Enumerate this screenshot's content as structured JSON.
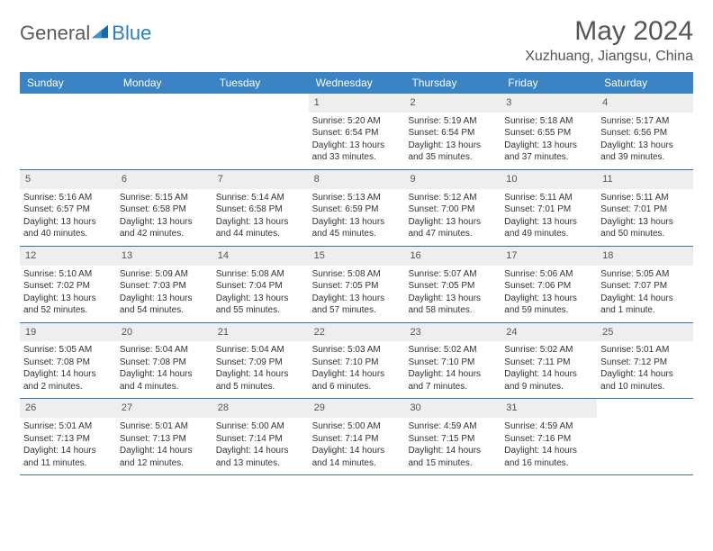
{
  "brand": {
    "part1": "General",
    "part2": "Blue"
  },
  "title": "May 2024",
  "location": "Xuzhuang, Jiangsu, China",
  "colors": {
    "header_bg": "#3a84c5",
    "header_text": "#ffffff",
    "daynum_bg": "#eeeeee",
    "cell_text": "#333333",
    "rule": "#3a6fa5",
    "brand_gray": "#5a5a5a",
    "brand_blue": "#2a7ec4"
  },
  "day_names": [
    "Sunday",
    "Monday",
    "Tuesday",
    "Wednesday",
    "Thursday",
    "Friday",
    "Saturday"
  ],
  "weeks": [
    [
      {
        "blank": true
      },
      {
        "blank": true
      },
      {
        "blank": true
      },
      {
        "n": "1",
        "sr": "Sunrise: 5:20 AM",
        "ss": "Sunset: 6:54 PM",
        "d1": "Daylight: 13 hours",
        "d2": "and 33 minutes."
      },
      {
        "n": "2",
        "sr": "Sunrise: 5:19 AM",
        "ss": "Sunset: 6:54 PM",
        "d1": "Daylight: 13 hours",
        "d2": "and 35 minutes."
      },
      {
        "n": "3",
        "sr": "Sunrise: 5:18 AM",
        "ss": "Sunset: 6:55 PM",
        "d1": "Daylight: 13 hours",
        "d2": "and 37 minutes."
      },
      {
        "n": "4",
        "sr": "Sunrise: 5:17 AM",
        "ss": "Sunset: 6:56 PM",
        "d1": "Daylight: 13 hours",
        "d2": "and 39 minutes."
      }
    ],
    [
      {
        "n": "5",
        "sr": "Sunrise: 5:16 AM",
        "ss": "Sunset: 6:57 PM",
        "d1": "Daylight: 13 hours",
        "d2": "and 40 minutes."
      },
      {
        "n": "6",
        "sr": "Sunrise: 5:15 AM",
        "ss": "Sunset: 6:58 PM",
        "d1": "Daylight: 13 hours",
        "d2": "and 42 minutes."
      },
      {
        "n": "7",
        "sr": "Sunrise: 5:14 AM",
        "ss": "Sunset: 6:58 PM",
        "d1": "Daylight: 13 hours",
        "d2": "and 44 minutes."
      },
      {
        "n": "8",
        "sr": "Sunrise: 5:13 AM",
        "ss": "Sunset: 6:59 PM",
        "d1": "Daylight: 13 hours",
        "d2": "and 45 minutes."
      },
      {
        "n": "9",
        "sr": "Sunrise: 5:12 AM",
        "ss": "Sunset: 7:00 PM",
        "d1": "Daylight: 13 hours",
        "d2": "and 47 minutes."
      },
      {
        "n": "10",
        "sr": "Sunrise: 5:11 AM",
        "ss": "Sunset: 7:01 PM",
        "d1": "Daylight: 13 hours",
        "d2": "and 49 minutes."
      },
      {
        "n": "11",
        "sr": "Sunrise: 5:11 AM",
        "ss": "Sunset: 7:01 PM",
        "d1": "Daylight: 13 hours",
        "d2": "and 50 minutes."
      }
    ],
    [
      {
        "n": "12",
        "sr": "Sunrise: 5:10 AM",
        "ss": "Sunset: 7:02 PM",
        "d1": "Daylight: 13 hours",
        "d2": "and 52 minutes."
      },
      {
        "n": "13",
        "sr": "Sunrise: 5:09 AM",
        "ss": "Sunset: 7:03 PM",
        "d1": "Daylight: 13 hours",
        "d2": "and 54 minutes."
      },
      {
        "n": "14",
        "sr": "Sunrise: 5:08 AM",
        "ss": "Sunset: 7:04 PM",
        "d1": "Daylight: 13 hours",
        "d2": "and 55 minutes."
      },
      {
        "n": "15",
        "sr": "Sunrise: 5:08 AM",
        "ss": "Sunset: 7:05 PM",
        "d1": "Daylight: 13 hours",
        "d2": "and 57 minutes."
      },
      {
        "n": "16",
        "sr": "Sunrise: 5:07 AM",
        "ss": "Sunset: 7:05 PM",
        "d1": "Daylight: 13 hours",
        "d2": "and 58 minutes."
      },
      {
        "n": "17",
        "sr": "Sunrise: 5:06 AM",
        "ss": "Sunset: 7:06 PM",
        "d1": "Daylight: 13 hours",
        "d2": "and 59 minutes."
      },
      {
        "n": "18",
        "sr": "Sunrise: 5:05 AM",
        "ss": "Sunset: 7:07 PM",
        "d1": "Daylight: 14 hours",
        "d2": "and 1 minute."
      }
    ],
    [
      {
        "n": "19",
        "sr": "Sunrise: 5:05 AM",
        "ss": "Sunset: 7:08 PM",
        "d1": "Daylight: 14 hours",
        "d2": "and 2 minutes."
      },
      {
        "n": "20",
        "sr": "Sunrise: 5:04 AM",
        "ss": "Sunset: 7:08 PM",
        "d1": "Daylight: 14 hours",
        "d2": "and 4 minutes."
      },
      {
        "n": "21",
        "sr": "Sunrise: 5:04 AM",
        "ss": "Sunset: 7:09 PM",
        "d1": "Daylight: 14 hours",
        "d2": "and 5 minutes."
      },
      {
        "n": "22",
        "sr": "Sunrise: 5:03 AM",
        "ss": "Sunset: 7:10 PM",
        "d1": "Daylight: 14 hours",
        "d2": "and 6 minutes."
      },
      {
        "n": "23",
        "sr": "Sunrise: 5:02 AM",
        "ss": "Sunset: 7:10 PM",
        "d1": "Daylight: 14 hours",
        "d2": "and 7 minutes."
      },
      {
        "n": "24",
        "sr": "Sunrise: 5:02 AM",
        "ss": "Sunset: 7:11 PM",
        "d1": "Daylight: 14 hours",
        "d2": "and 9 minutes."
      },
      {
        "n": "25",
        "sr": "Sunrise: 5:01 AM",
        "ss": "Sunset: 7:12 PM",
        "d1": "Daylight: 14 hours",
        "d2": "and 10 minutes."
      }
    ],
    [
      {
        "n": "26",
        "sr": "Sunrise: 5:01 AM",
        "ss": "Sunset: 7:13 PM",
        "d1": "Daylight: 14 hours",
        "d2": "and 11 minutes."
      },
      {
        "n": "27",
        "sr": "Sunrise: 5:01 AM",
        "ss": "Sunset: 7:13 PM",
        "d1": "Daylight: 14 hours",
        "d2": "and 12 minutes."
      },
      {
        "n": "28",
        "sr": "Sunrise: 5:00 AM",
        "ss": "Sunset: 7:14 PM",
        "d1": "Daylight: 14 hours",
        "d2": "and 13 minutes."
      },
      {
        "n": "29",
        "sr": "Sunrise: 5:00 AM",
        "ss": "Sunset: 7:14 PM",
        "d1": "Daylight: 14 hours",
        "d2": "and 14 minutes."
      },
      {
        "n": "30",
        "sr": "Sunrise: 4:59 AM",
        "ss": "Sunset: 7:15 PM",
        "d1": "Daylight: 14 hours",
        "d2": "and 15 minutes."
      },
      {
        "n": "31",
        "sr": "Sunrise: 4:59 AM",
        "ss": "Sunset: 7:16 PM",
        "d1": "Daylight: 14 hours",
        "d2": "and 16 minutes."
      },
      {
        "blank": true
      }
    ]
  ]
}
